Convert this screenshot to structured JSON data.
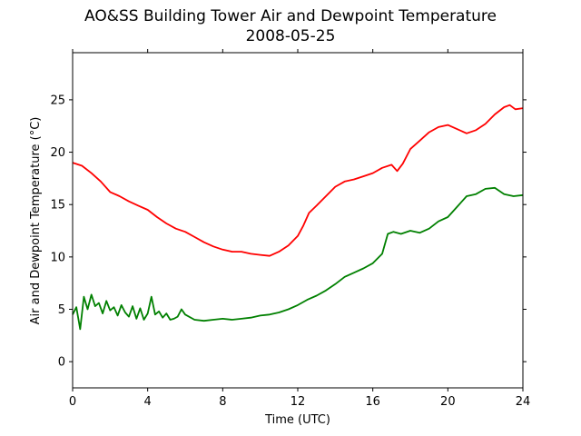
{
  "chart_data": {
    "type": "line",
    "title": "AO&SS Building Tower Air and Dewpoint Temperature",
    "subtitle": "2008-05-25",
    "xlabel": "Time (UTC)",
    "ylabel": "Air and Dewpoint Temperature (°C)",
    "xlim": [
      0,
      24
    ],
    "ylim": [
      -2.5,
      29.5
    ],
    "xticks": [
      0,
      4,
      8,
      12,
      16,
      20,
      24
    ],
    "yticks": [
      0,
      5,
      10,
      15,
      20,
      25
    ],
    "grid": false,
    "legend": "none",
    "series": [
      {
        "color": "#ff0000",
        "x": [
          0,
          0.5,
          1,
          1.5,
          2,
          2.5,
          3,
          3.5,
          4,
          4.5,
          5,
          5.5,
          6,
          6.5,
          7,
          7.5,
          8,
          8.5,
          9,
          9.5,
          10,
          10.5,
          11,
          11.5,
          12,
          12.3,
          12.6,
          13,
          13.5,
          14,
          14.5,
          15,
          15.5,
          16,
          16.5,
          17,
          17.3,
          17.6,
          18,
          18.5,
          19,
          19.5,
          20,
          20.5,
          21,
          21.5,
          22,
          22.5,
          23,
          23.3,
          23.6,
          24
        ],
        "y": [
          19.0,
          18.7,
          18.0,
          17.2,
          16.2,
          15.8,
          15.3,
          14.9,
          14.5,
          13.8,
          13.2,
          12.7,
          12.4,
          11.9,
          11.4,
          11.0,
          10.7,
          10.5,
          10.5,
          10.3,
          10.2,
          10.1,
          10.5,
          11.1,
          12.0,
          13.0,
          14.2,
          14.9,
          15.8,
          16.7,
          17.2,
          17.4,
          17.7,
          18.0,
          18.5,
          18.8,
          18.2,
          18.9,
          20.3,
          21.1,
          21.9,
          22.4,
          22.6,
          22.2,
          21.8,
          22.1,
          22.7,
          23.6,
          24.3,
          24.5,
          24.1,
          24.2
        ]
      },
      {
        "color": "#008000",
        "x": [
          0,
          0.2,
          0.4,
          0.6,
          0.8,
          1,
          1.2,
          1.4,
          1.6,
          1.8,
          2,
          2.2,
          2.4,
          2.6,
          2.8,
          3,
          3.2,
          3.4,
          3.6,
          3.8,
          4,
          4.2,
          4.4,
          4.6,
          4.8,
          5,
          5.2,
          5.4,
          5.6,
          5.8,
          6,
          6.5,
          7,
          7.5,
          8,
          8.5,
          9,
          9.5,
          10,
          10.5,
          11,
          11.5,
          12,
          12.5,
          13,
          13.5,
          14,
          14.5,
          15,
          15.5,
          16,
          16.5,
          16.8,
          17.1,
          17.5,
          18,
          18.5,
          19,
          19.5,
          20,
          20.5,
          21,
          21.5,
          22,
          22.5,
          23,
          23.5,
          24
        ],
        "y": [
          4.5,
          5.2,
          3.1,
          6.2,
          5.0,
          6.4,
          5.3,
          5.6,
          4.6,
          5.8,
          4.9,
          5.2,
          4.4,
          5.4,
          4.7,
          4.3,
          5.3,
          4.1,
          5.1,
          4.0,
          4.6,
          6.2,
          4.5,
          4.8,
          4.2,
          4.6,
          4.0,
          4.1,
          4.3,
          5.0,
          4.5,
          4.0,
          3.9,
          4.0,
          4.1,
          4.0,
          4.1,
          4.2,
          4.4,
          4.5,
          4.7,
          5.0,
          5.4,
          5.9,
          6.3,
          6.8,
          7.4,
          8.1,
          8.5,
          8.9,
          9.4,
          10.3,
          12.2,
          12.4,
          12.2,
          12.5,
          12.3,
          12.7,
          13.4,
          13.8,
          14.8,
          15.8,
          16.0,
          16.5,
          16.6,
          16.0,
          15.8,
          15.9
        ]
      }
    ]
  }
}
